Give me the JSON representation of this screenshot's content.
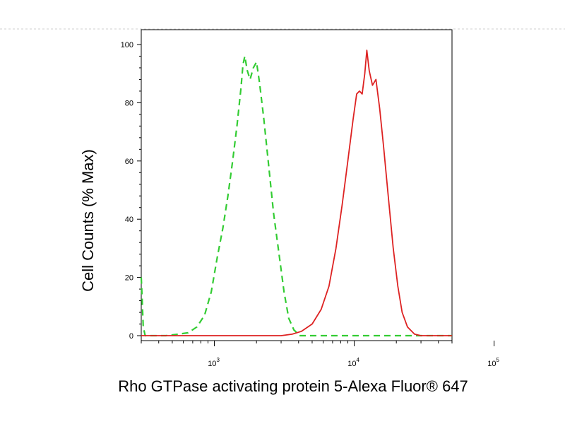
{
  "chart_data": {
    "type": "line",
    "xlabel": "Rho GTPase activating protein 5-Alexa Fluor® 647",
    "ylabel": "Cell Counts (% Max)",
    "x_scale": "log",
    "xlim": [
      300,
      50000
    ],
    "ylim": [
      0,
      100
    ],
    "x_ticks": [
      {
        "value": 1000,
        "base": "10",
        "exp": "3"
      },
      {
        "value": 10000,
        "base": "10",
        "exp": "4"
      },
      {
        "value": 100000,
        "base": "10",
        "exp": "5"
      }
    ],
    "y_ticks": [
      0,
      20,
      40,
      60,
      80,
      100
    ],
    "grid": false,
    "series": [
      {
        "color": "#33cc33",
        "style": "dashed",
        "points": [
          [
            300,
            20
          ],
          [
            305,
            12
          ],
          [
            310,
            3
          ],
          [
            320,
            0
          ],
          [
            450,
            0
          ],
          [
            550,
            0.5
          ],
          [
            650,
            1
          ],
          [
            750,
            3
          ],
          [
            850,
            7
          ],
          [
            950,
            15
          ],
          [
            1050,
            27
          ],
          [
            1150,
            37
          ],
          [
            1250,
            48
          ],
          [
            1350,
            60
          ],
          [
            1450,
            72
          ],
          [
            1550,
            85
          ],
          [
            1600,
            93
          ],
          [
            1650,
            96
          ],
          [
            1720,
            91
          ],
          [
            1800,
            88
          ],
          [
            1900,
            92
          ],
          [
            2000,
            94
          ],
          [
            2100,
            87
          ],
          [
            2250,
            75
          ],
          [
            2450,
            58
          ],
          [
            2650,
            42
          ],
          [
            2900,
            28
          ],
          [
            3150,
            15
          ],
          [
            3400,
            6
          ],
          [
            3700,
            2
          ],
          [
            4100,
            0
          ],
          [
            50000,
            0
          ]
        ]
      },
      {
        "color": "#dd2222",
        "style": "solid",
        "points": [
          [
            300,
            0
          ],
          [
            3000,
            0
          ],
          [
            3600,
            0.5
          ],
          [
            4200,
            1.5
          ],
          [
            5000,
            4
          ],
          [
            5800,
            9
          ],
          [
            6600,
            17
          ],
          [
            7400,
            30
          ],
          [
            8200,
            45
          ],
          [
            9000,
            60
          ],
          [
            9800,
            74
          ],
          [
            10400,
            83
          ],
          [
            10900,
            84
          ],
          [
            11400,
            83
          ],
          [
            11900,
            90
          ],
          [
            12300,
            98
          ],
          [
            12800,
            91
          ],
          [
            13500,
            86
          ],
          [
            14300,
            88
          ],
          [
            15200,
            78
          ],
          [
            16200,
            65
          ],
          [
            17500,
            48
          ],
          [
            19000,
            30
          ],
          [
            20500,
            17
          ],
          [
            22000,
            8
          ],
          [
            24000,
            3
          ],
          [
            27000,
            0.5
          ],
          [
            30000,
            0
          ],
          [
            50000,
            0
          ]
        ]
      }
    ]
  }
}
